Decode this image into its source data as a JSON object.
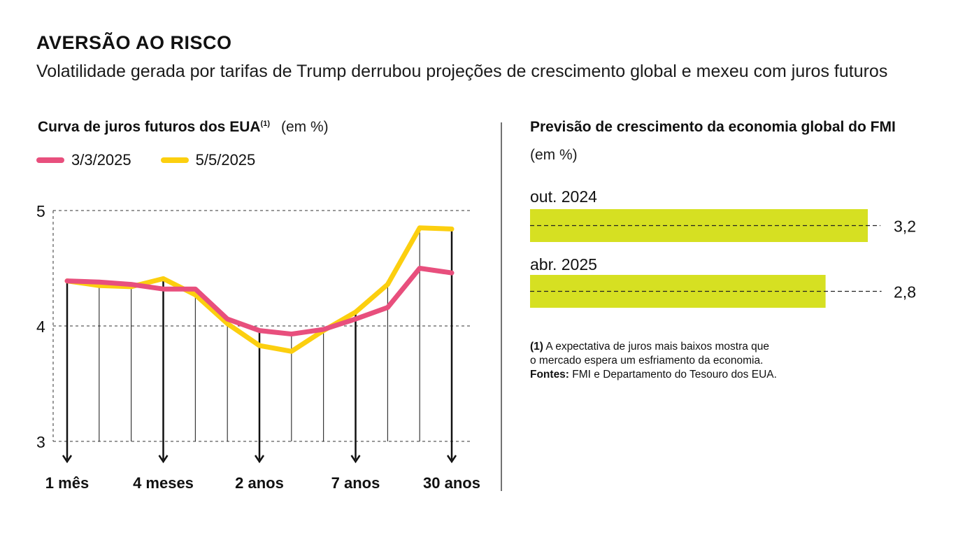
{
  "header": {
    "title": "AVERSÃO AO RISCO",
    "subtitle": "Volatilidade gerada por tarifas de Trump derrubou projeções de crescimento global e mexeu com juros futuros"
  },
  "colors": {
    "series_march": "#e84f7d",
    "series_may": "#fccf0f",
    "bars": "#d6e022",
    "text": "#111111",
    "grid": "#333333"
  },
  "chart_data": [
    {
      "type": "line",
      "title": "Curva de juros futuros dos EUA",
      "title_note": "(1)",
      "unit": "(em %)",
      "ylim": [
        3,
        5
      ],
      "yticks": [
        "3",
        "4",
        "5"
      ],
      "x_points": 13,
      "x_labels": [
        {
          "index": 0,
          "label": "1 mês"
        },
        {
          "index": 3,
          "label": "4 meses"
        },
        {
          "index": 6,
          "label": "2 anos"
        },
        {
          "index": 9,
          "label": "7 anos"
        },
        {
          "index": 12,
          "label": "30 anos"
        }
      ],
      "series": [
        {
          "name": "3/3/2025",
          "color_key": "series_march",
          "values": [
            4.39,
            4.38,
            4.36,
            4.32,
            4.32,
            4.06,
            3.96,
            3.93,
            3.97,
            4.06,
            4.16,
            4.5,
            4.46
          ]
        },
        {
          "name": "5/5/2025",
          "color_key": "series_may",
          "values": [
            4.39,
            4.35,
            4.34,
            4.41,
            4.27,
            4.02,
            3.83,
            3.78,
            3.96,
            4.12,
            4.36,
            4.85,
            4.84
          ]
        }
      ]
    },
    {
      "type": "bar",
      "title": "Previsão de crescimento da economia global do FMI",
      "unit": "(em %)",
      "xlim": [
        0,
        3.2
      ],
      "categories": [
        "out. 2024",
        "abr. 2025"
      ],
      "values": [
        3.2,
        2.8
      ],
      "value_labels": [
        "3,2",
        "2,8"
      ]
    }
  ],
  "notes": {
    "note1_marker": "(1)",
    "note1_text": " A expectativa de juros mais baixos mostra que",
    "note1_text2": "o mercado espera um esfriamento da economia.",
    "sources_label": "Fontes:",
    "sources_text": " FMI e Departamento do Tesouro dos EUA."
  }
}
